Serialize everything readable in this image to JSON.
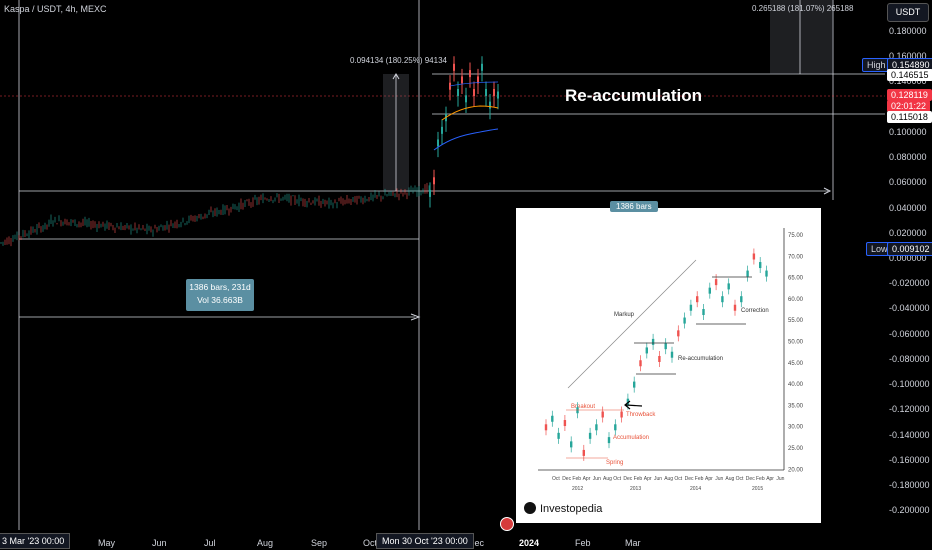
{
  "header": {
    "title": "Kaspa / USDT, 4h, MEXC",
    "currency_button": "USDT"
  },
  "price_axis": {
    "ticks": [
      "0.180000",
      "0.160000",
      "0.140000",
      "0.120000",
      "0.100000",
      "0.080000",
      "0.060000",
      "0.040000",
      "0.020000",
      "0.000000",
      "-0.020000",
      "-0.040000",
      "-0.060000",
      "-0.080000",
      "-0.100000",
      "-0.120000",
      "-0.140000",
      "-0.160000",
      "-0.180000",
      "-0.200000"
    ],
    "tick_values": [
      0.18,
      0.16,
      0.14,
      0.12,
      0.1,
      0.08,
      0.06,
      0.04,
      0.02,
      0.0,
      -0.02,
      -0.04,
      -0.06,
      -0.08,
      -0.1,
      -0.12,
      -0.14,
      -0.16,
      -0.18,
      -0.2
    ],
    "high_label": "High",
    "high_value": "0.154890",
    "level_1": "0.146515",
    "current_price": "0.128119",
    "countdown": "02:01:22",
    "level_2": "0.115018",
    "low_label": "Low",
    "low_value": "0.009102"
  },
  "time_axis": {
    "start_box": "3 Mar '23  00:00",
    "labels": [
      "May",
      "Jun",
      "Jul",
      "Aug",
      "Sep",
      "Oct",
      "Dec",
      "2024",
      "Feb",
      "Mar"
    ],
    "cursor_box": "Mon 30 Oct '23  00:00"
  },
  "annotations": {
    "measure_top": "0.265188 (181.07%) 265188",
    "measure_mid": "0.094134 (180.25%) 94134",
    "date_range_line1": "1386 bars, 231d",
    "date_range_line2": "Vol 36.663B",
    "bars_tag": "1386 bars",
    "reaccumulation": "Re-accumulation"
  },
  "inset": {
    "labels": {
      "markup": "Markup",
      "reaccumulation": "Re-accumulation",
      "correction": "Correction",
      "breakout": "Breakout",
      "throwback": "Throwback",
      "accumulation": "Accumulation",
      "spring": "Spring"
    },
    "y_ticks": [
      "75.00",
      "70.00",
      "65.00",
      "60.00",
      "55.00",
      "50.00",
      "45.00",
      "40.00",
      "35.00",
      "30.00",
      "25.00",
      "20.00"
    ],
    "x_months": [
      "Oct",
      "Dec",
      "Feb",
      "Apr",
      "Jun",
      "Aug",
      "Oct",
      "Dec",
      "Feb",
      "Apr",
      "Jun",
      "Aug",
      "Oct",
      "Dec",
      "Feb",
      "Apr",
      "Jun",
      "Aug",
      "Oct",
      "Dec",
      "Feb",
      "Apr",
      "Jun"
    ],
    "x_years": [
      "2012",
      "2013",
      "2014",
      "2015"
    ],
    "brand": "Investopedia"
  },
  "colors": {
    "background": "#000000",
    "up": "#26a69a",
    "down": "#ef5350",
    "accent": "#5b8fa2",
    "price_tag": "#f23645",
    "blue_ma": "#2962ff",
    "orange_ma": "#ff9800"
  }
}
